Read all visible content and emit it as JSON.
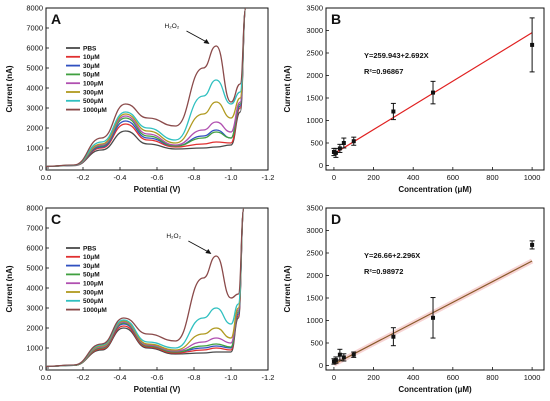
{
  "chart_data": [
    {
      "panel": "A",
      "type": "line",
      "xlabel": "Potential (V)",
      "ylabel": "Current (nA)",
      "xlim": [
        0.0,
        -1.2
      ],
      "ylim": [
        -100,
        8000
      ],
      "xticks": [
        "0.0",
        "-0.2",
        "-0.4",
        "-0.6",
        "-0.8",
        "-1.0",
        "-1.2"
      ],
      "xtick_values": [
        0.0,
        -0.2,
        -0.4,
        -0.6,
        -0.8,
        -1.0,
        -1.2
      ],
      "yticks": [
        "0",
        "1000",
        "2000",
        "3000",
        "4000",
        "5000",
        "6000",
        "7000",
        "8000"
      ],
      "ytick_values": [
        0,
        1000,
        2000,
        3000,
        4000,
        5000,
        6000,
        7000,
        8000
      ],
      "annotation": "H₂O₂",
      "annotation_point": [
        -0.9,
        6100
      ],
      "legend_position": "upper-left",
      "series": [
        {
          "name": "PBS",
          "color": "#4a4a4a",
          "x": [
            0.0,
            -0.15,
            -0.3,
            -0.43,
            -0.55,
            -0.7,
            -0.85,
            -0.92,
            -1.0,
            -1.05,
            -1.08
          ],
          "y": [
            80,
            120,
            900,
            1850,
            1200,
            950,
            1000,
            1050,
            1150,
            2800,
            8000
          ]
        },
        {
          "name": "10μM",
          "color": "#e03030",
          "x": [
            0.0,
            -0.15,
            -0.3,
            -0.43,
            -0.55,
            -0.7,
            -0.85,
            -0.92,
            -1.0,
            -1.05,
            -1.08
          ],
          "y": [
            80,
            130,
            1000,
            2200,
            1400,
            1050,
            1200,
            1300,
            1250,
            3000,
            8000
          ]
        },
        {
          "name": "30μM",
          "color": "#3050c0",
          "x": [
            0.0,
            -0.15,
            -0.3,
            -0.43,
            -0.55,
            -0.7,
            -0.85,
            -0.92,
            -1.0,
            -1.05,
            -1.08
          ],
          "y": [
            80,
            130,
            1050,
            2350,
            1500,
            1100,
            1600,
            1900,
            1500,
            3100,
            8000
          ]
        },
        {
          "name": "50μM",
          "color": "#40a040",
          "x": [
            0.0,
            -0.15,
            -0.3,
            -0.43,
            -0.55,
            -0.7,
            -0.85,
            -0.92,
            -1.0,
            -1.05,
            -1.08
          ],
          "y": [
            80,
            130,
            1100,
            2500,
            1600,
            1100,
            1500,
            1800,
            1500,
            3200,
            8000
          ]
        },
        {
          "name": "100μM",
          "color": "#b04fb0",
          "x": [
            0.0,
            -0.15,
            -0.3,
            -0.43,
            -0.55,
            -0.7,
            -0.85,
            -0.92,
            -1.0,
            -1.05,
            -1.08
          ],
          "y": [
            80,
            130,
            1150,
            2600,
            1700,
            1150,
            1900,
            2300,
            1800,
            3300,
            8000
          ]
        },
        {
          "name": "300μM",
          "color": "#b09a20",
          "x": [
            0.0,
            -0.15,
            -0.3,
            -0.43,
            -0.55,
            -0.7,
            -0.85,
            -0.92,
            -1.0,
            -1.05,
            -1.08
          ],
          "y": [
            80,
            140,
            1200,
            2700,
            1850,
            1250,
            2700,
            3300,
            2500,
            3500,
            8000
          ]
        },
        {
          "name": "500μM",
          "color": "#30c0c0",
          "x": [
            0.0,
            -0.15,
            -0.3,
            -0.43,
            -0.55,
            -0.7,
            -0.85,
            -0.92,
            -1.0,
            -1.05,
            -1.08
          ],
          "y": [
            80,
            140,
            1300,
            2800,
            2000,
            1400,
            3600,
            4400,
            3200,
            3800,
            8000
          ]
        },
        {
          "name": "1000μM",
          "color": "#8a4a4a",
          "x": [
            0.0,
            -0.15,
            -0.3,
            -0.43,
            -0.55,
            -0.7,
            -0.85,
            -0.92,
            -1.0,
            -1.05,
            -1.08
          ],
          "y": [
            80,
            150,
            1500,
            3200,
            2500,
            2100,
            5000,
            6100,
            3300,
            4200,
            8000
          ]
        }
      ]
    },
    {
      "panel": "B",
      "type": "scatter",
      "xlabel": "Concentration (μM)",
      "ylabel": "Current (nA)",
      "xlim": [
        -40,
        1060
      ],
      "ylim": [
        -100,
        3500
      ],
      "xticks": [
        "0",
        "200",
        "400",
        "600",
        "800",
        "1000"
      ],
      "xtick_values": [
        0,
        200,
        400,
        600,
        800,
        1000
      ],
      "yticks": [
        "0",
        "500",
        "1000",
        "1500",
        "2000",
        "2500",
        "3000",
        "3500"
      ],
      "ytick_values": [
        0,
        500,
        1000,
        1500,
        2000,
        2500,
        3000,
        3500
      ],
      "equation": "Y=259.943+2.692X",
      "r_squared": "R²=0.96867",
      "fit": {
        "intercept": 259.943,
        "slope": 2.692,
        "x_range": [
          0,
          1000
        ],
        "color": "#e02020"
      },
      "points": {
        "x": [
          0,
          10,
          30,
          50,
          100,
          300,
          500,
          1000
        ],
        "y": [
          300,
          280,
          380,
          500,
          540,
          1200,
          1620,
          2680
        ],
        "err": [
          80,
          100,
          90,
          110,
          90,
          180,
          250,
          600
        ]
      }
    },
    {
      "panel": "C",
      "type": "line",
      "xlabel": "Potential (V)",
      "ylabel": "Current (nA)",
      "xlim": [
        0.0,
        -1.2
      ],
      "ylim": [
        -100,
        8000
      ],
      "xticks": [
        "0.0",
        "-0.2",
        "-0.4",
        "-0.6",
        "-0.8",
        "-1.0",
        "-1.2"
      ],
      "xtick_values": [
        0.0,
        -0.2,
        -0.4,
        -0.6,
        -0.8,
        -1.0,
        -1.2
      ],
      "yticks": [
        "0",
        "1000",
        "2000",
        "3000",
        "4000",
        "5000",
        "6000",
        "7000",
        "8000"
      ],
      "ytick_values": [
        0,
        1000,
        2000,
        3000,
        4000,
        5000,
        6000,
        7000,
        8000
      ],
      "annotation": "H₂O₂",
      "annotation_point": [
        -0.91,
        5600
      ],
      "legend_position": "upper-left",
      "series": [
        {
          "name": "PBS",
          "color": "#4a4a4a",
          "x": [
            0.0,
            -0.15,
            -0.3,
            -0.42,
            -0.55,
            -0.7,
            -0.85,
            -0.92,
            -1.0,
            -1.04,
            -1.07
          ],
          "y": [
            80,
            130,
            900,
            2000,
            1000,
            700,
            750,
            800,
            800,
            2500,
            8000
          ]
        },
        {
          "name": "10μM",
          "color": "#e03030",
          "x": [
            0.0,
            -0.15,
            -0.3,
            -0.42,
            -0.55,
            -0.7,
            -0.85,
            -0.92,
            -1.0,
            -1.04,
            -1.07
          ],
          "y": [
            80,
            130,
            950,
            2100,
            1050,
            750,
            900,
            1000,
            900,
            2600,
            8000
          ]
        },
        {
          "name": "30μM",
          "color": "#3050c0",
          "x": [
            0.0,
            -0.15,
            -0.3,
            -0.42,
            -0.55,
            -0.7,
            -0.85,
            -0.92,
            -1.0,
            -1.04,
            -1.07
          ],
          "y": [
            80,
            130,
            1000,
            2200,
            1100,
            800,
            1000,
            1100,
            1000,
            2700,
            8000
          ]
        },
        {
          "name": "50μM",
          "color": "#40a040",
          "x": [
            0.0,
            -0.15,
            -0.3,
            -0.42,
            -0.55,
            -0.7,
            -0.85,
            -0.92,
            -1.0,
            -1.04,
            -1.07
          ],
          "y": [
            80,
            130,
            1000,
            2250,
            1100,
            800,
            1100,
            1200,
            1050,
            2800,
            8000
          ]
        },
        {
          "name": "100μM",
          "color": "#b04fb0",
          "x": [
            0.0,
            -0.15,
            -0.3,
            -0.42,
            -0.55,
            -0.7,
            -0.85,
            -0.92,
            -1.0,
            -1.04,
            -1.07
          ],
          "y": [
            80,
            140,
            1050,
            2300,
            1150,
            850,
            1300,
            1500,
            1250,
            2900,
            8000
          ]
        },
        {
          "name": "300μM",
          "color": "#b09a20",
          "x": [
            0.0,
            -0.15,
            -0.3,
            -0.42,
            -0.55,
            -0.7,
            -0.85,
            -0.92,
            -1.0,
            -1.04,
            -1.07
          ],
          "y": [
            80,
            140,
            1100,
            2350,
            1200,
            900,
            1700,
            2000,
            1500,
            3000,
            8000
          ]
        },
        {
          "name": "500μM",
          "color": "#30c0c0",
          "x": [
            0.0,
            -0.15,
            -0.3,
            -0.42,
            -0.55,
            -0.7,
            -0.85,
            -0.92,
            -1.0,
            -1.04,
            -1.07
          ],
          "y": [
            80,
            140,
            1150,
            2400,
            1300,
            1000,
            2500,
            3000,
            2200,
            3200,
            8000
          ]
        },
        {
          "name": "1000μM",
          "color": "#8a4a4a",
          "x": [
            0.0,
            -0.15,
            -0.3,
            -0.42,
            -0.55,
            -0.7,
            -0.85,
            -0.92,
            -1.0,
            -1.04,
            -1.07
          ],
          "y": [
            80,
            150,
            1200,
            2500,
            1700,
            1350,
            4500,
            5600,
            3500,
            3700,
            8000
          ]
        }
      ]
    },
    {
      "panel": "D",
      "type": "scatter",
      "xlabel": "Concentration (μM)",
      "ylabel": "Current (nA)",
      "xlim": [
        -40,
        1060
      ],
      "ylim": [
        -100,
        3500
      ],
      "xticks": [
        "0",
        "200",
        "400",
        "600",
        "800",
        "1000"
      ],
      "xtick_values": [
        0,
        200,
        400,
        600,
        800,
        1000
      ],
      "yticks": [
        "0",
        "500",
        "1000",
        "1500",
        "2000",
        "2500",
        "3000",
        "3500"
      ],
      "ytick_values": [
        0,
        500,
        1000,
        1500,
        2000,
        2500,
        3000,
        3500
      ],
      "equation": "Y=26.66+2.296X",
      "r_squared": "R²=0.98972",
      "fit": {
        "intercept": 26.66,
        "slope": 2.296,
        "x_range": [
          0,
          1000
        ],
        "color": "#8a5a2a"
      },
      "points": {
        "x": [
          0,
          10,
          30,
          50,
          100,
          300,
          500,
          1000
        ],
        "y": [
          90,
          120,
          240,
          180,
          240,
          640,
          1060,
          2680
        ],
        "err": [
          60,
          70,
          120,
          80,
          60,
          200,
          450,
          90
        ]
      }
    }
  ],
  "panels": {
    "A": {
      "letter": "A"
    },
    "B": {
      "letter": "B"
    },
    "C": {
      "letter": "C"
    },
    "D": {
      "letter": "D"
    }
  }
}
